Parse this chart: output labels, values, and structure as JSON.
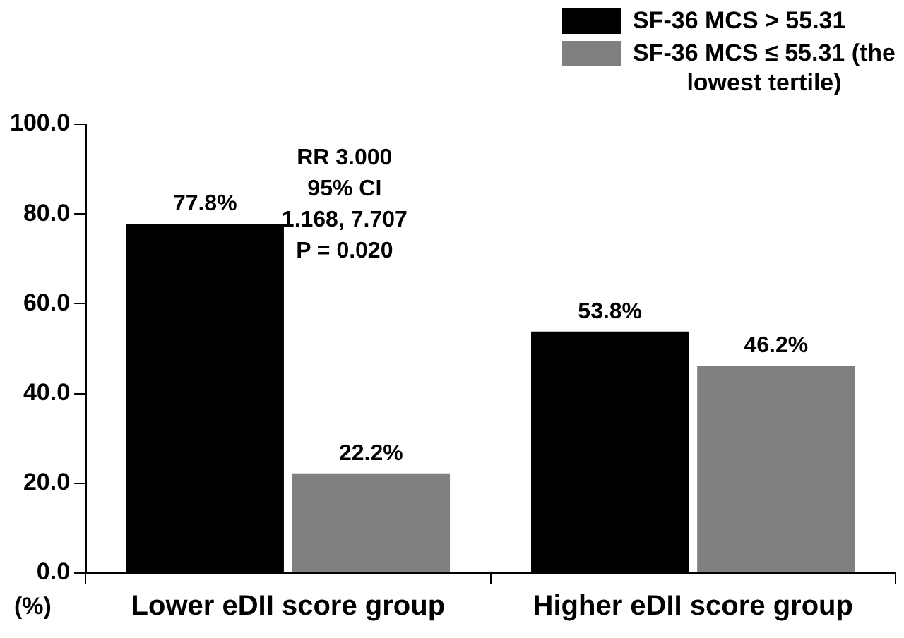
{
  "chart_data": {
    "type": "bar",
    "ylabel": "(%)",
    "categories": [
      "Lower eDII score group",
      "Higher eDII score group"
    ],
    "series": [
      {
        "name": "SF-36 MCS > 55.31",
        "color": "#000000",
        "values": [
          77.8,
          53.8
        ],
        "value_labels": [
          "77.8%",
          "53.8%"
        ]
      },
      {
        "name": "SF-36 MCS ≤ 55.31 (the lowest tertile)",
        "color": "#808080",
        "values": [
          22.2,
          46.2
        ],
        "value_labels": [
          "22.2%",
          "46.2%"
        ]
      }
    ],
    "annotations": [
      "RR 3.000",
      "95% CI",
      "1.168, 7.707",
      "P = 0.020"
    ],
    "ylim": [
      0,
      100
    ],
    "yticks": [
      {
        "value": 0,
        "label": "0.0"
      },
      {
        "value": 20,
        "label": "20.0"
      },
      {
        "value": 40,
        "label": "40.0"
      },
      {
        "value": 60,
        "label": "60.0"
      },
      {
        "value": 80,
        "label": "80.0"
      },
      {
        "value": 100,
        "label": "100.0"
      }
    ],
    "grid": false,
    "legend": "top right"
  }
}
